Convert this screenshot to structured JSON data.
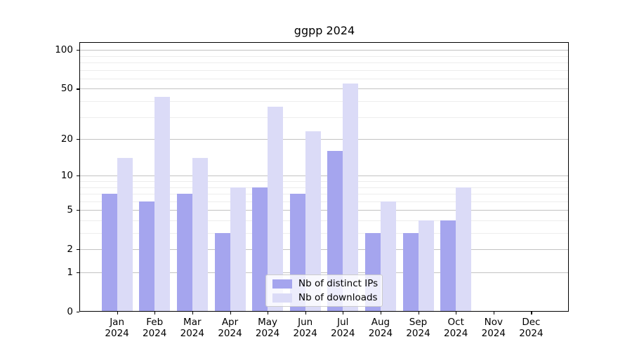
{
  "chart_data": {
    "type": "bar",
    "title": "ggpp 2024",
    "year": "2024",
    "categories": [
      "Jan",
      "Feb",
      "Mar",
      "Apr",
      "May",
      "Jun",
      "Jul",
      "Aug",
      "Sep",
      "Oct",
      "Nov",
      "Dec"
    ],
    "x_tick_labels": [
      "Jan 2024",
      "Feb 2024",
      "Mar 2024",
      "Apr 2024",
      "May 2024",
      "Jun 2024",
      "Jul 2024",
      "Aug 2024",
      "Sep 2024",
      "Oct 2024",
      "Nov 2024",
      "Dec 2024"
    ],
    "series": [
      {
        "name": "Nb of distinct IPs",
        "color": "#a5a5ee",
        "values": [
          7,
          6,
          7,
          3,
          8,
          7,
          16,
          3,
          3,
          4,
          0,
          0
        ]
      },
      {
        "name": "Nb of downloads",
        "color": "#dbdbf7",
        "values": [
          14,
          43,
          14,
          8,
          36,
          23,
          55,
          6,
          4,
          8,
          0,
          0
        ]
      }
    ],
    "xlabel": "",
    "ylabel": "",
    "y_scale": "log1p",
    "y_ticks": [
      100,
      50,
      20,
      10,
      5,
      2,
      1,
      0
    ],
    "y_minor_ticks": [
      3,
      4,
      6,
      7,
      8,
      9,
      30,
      40,
      60,
      70,
      80,
      90
    ],
    "ylim": [
      0,
      113
    ],
    "grid": true,
    "legend": {
      "position": "lower center",
      "entries": [
        "Nb of distinct IPs",
        "Nb of downloads"
      ]
    },
    "colors": {
      "major_grid": "#c3c3c3",
      "minor_grid": "#ededed",
      "axis": "#000000",
      "background": "#ffffff"
    }
  }
}
